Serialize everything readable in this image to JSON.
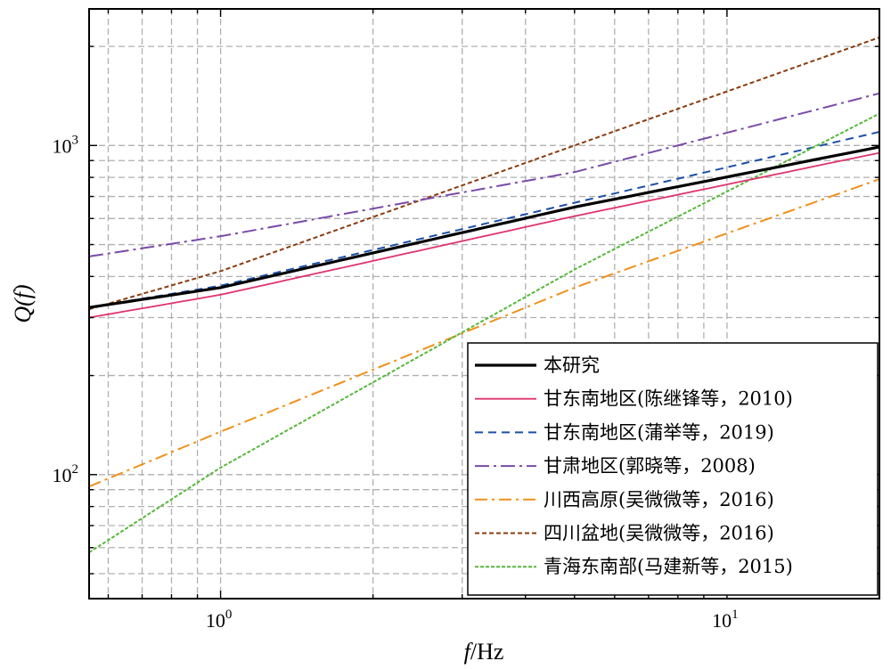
{
  "chart_data": {
    "type": "line",
    "xscale": "log",
    "yscale": "log",
    "xlim": [
      0.55,
      20
    ],
    "ylim": [
      42,
      2600
    ],
    "xlabel": {
      "italic": "f",
      "rest": "/Hz"
    },
    "ylabel": "Q(f)",
    "x_ticks": [
      {
        "base": "10",
        "exp": "0",
        "value": 1
      },
      {
        "base": "10",
        "exp": "1",
        "value": 10
      }
    ],
    "y_ticks": [
      {
        "base": "10",
        "exp": "2",
        "value": 100
      },
      {
        "base": "10",
        "exp": "3",
        "value": 1000
      }
    ],
    "grid": true,
    "legend_position": "bottom-right",
    "series": [
      {
        "name": "本研究",
        "color": "#000000",
        "dash": "",
        "width": 3.2,
        "x": [
          0.55,
          1,
          5,
          20
        ],
        "y": [
          322,
          370,
          650,
          990
        ]
      },
      {
        "name": "甘东南地区(陈继锋等，2010)",
        "color": "#e0336e",
        "dash": "",
        "width": 1.8,
        "x": [
          0.55,
          1,
          5,
          20
        ],
        "y": [
          300,
          352,
          610,
          950
        ]
      },
      {
        "name": "甘东南地区(蒲举等，2019)",
        "color": "#1c4fa8",
        "dash": "9,6",
        "width": 2,
        "x": [
          0.55,
          1,
          5,
          20
        ],
        "y": [
          322,
          375,
          670,
          1100
        ]
      },
      {
        "name": "甘肃地区(郭晓等，2008)",
        "color": "#7a4aa8",
        "dash": "16,5,3,5",
        "width": 2,
        "x": [
          0.55,
          1,
          5,
          20
        ],
        "y": [
          460,
          530,
          830,
          1440
        ]
      },
      {
        "name": "川西高原(吴微微等，2016)",
        "color": "#f0901a",
        "dash": "14,5,3,5",
        "width": 2,
        "x": [
          0.55,
          1,
          5,
          20
        ],
        "y": [
          92,
          135,
          370,
          790
        ]
      },
      {
        "name": "四川盆地(吴微微等，2016)",
        "color": "#8a3c0f",
        "dash": "5,3",
        "width": 2,
        "x": [
          0.55,
          1,
          5,
          20
        ],
        "y": [
          318,
          415,
          1000,
          2130
        ]
      },
      {
        "name": "青海东南部(马建新等，2015)",
        "color": "#55b83a",
        "dash": "4,2",
        "width": 2,
        "x": [
          0.55,
          1,
          5,
          20
        ],
        "y": [
          58,
          105,
          420,
          1250
        ]
      }
    ]
  }
}
